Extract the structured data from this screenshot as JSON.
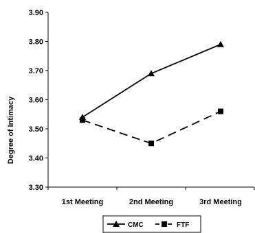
{
  "chart_data": {
    "type": "line",
    "title": "",
    "xlabel": "",
    "ylabel": "Degree of Intimacy",
    "categories": [
      "1st Meeting",
      "2nd Meeting",
      "3rd Meeting"
    ],
    "ylim": [
      3.3,
      3.9
    ],
    "yticks": [
      "3.30",
      "3.40",
      "3.50",
      "3.60",
      "3.70",
      "3.80",
      "3.90"
    ],
    "grid": false,
    "legend_position": "bottom",
    "series": [
      {
        "name": "CMC",
        "values": [
          3.54,
          3.69,
          3.79
        ],
        "marker": "triangle",
        "line_style": "solid",
        "color": "#000000"
      },
      {
        "name": "FTF",
        "values": [
          3.53,
          3.45,
          3.56
        ],
        "marker": "square",
        "line_style": "dashed",
        "color": "#000000"
      }
    ]
  }
}
